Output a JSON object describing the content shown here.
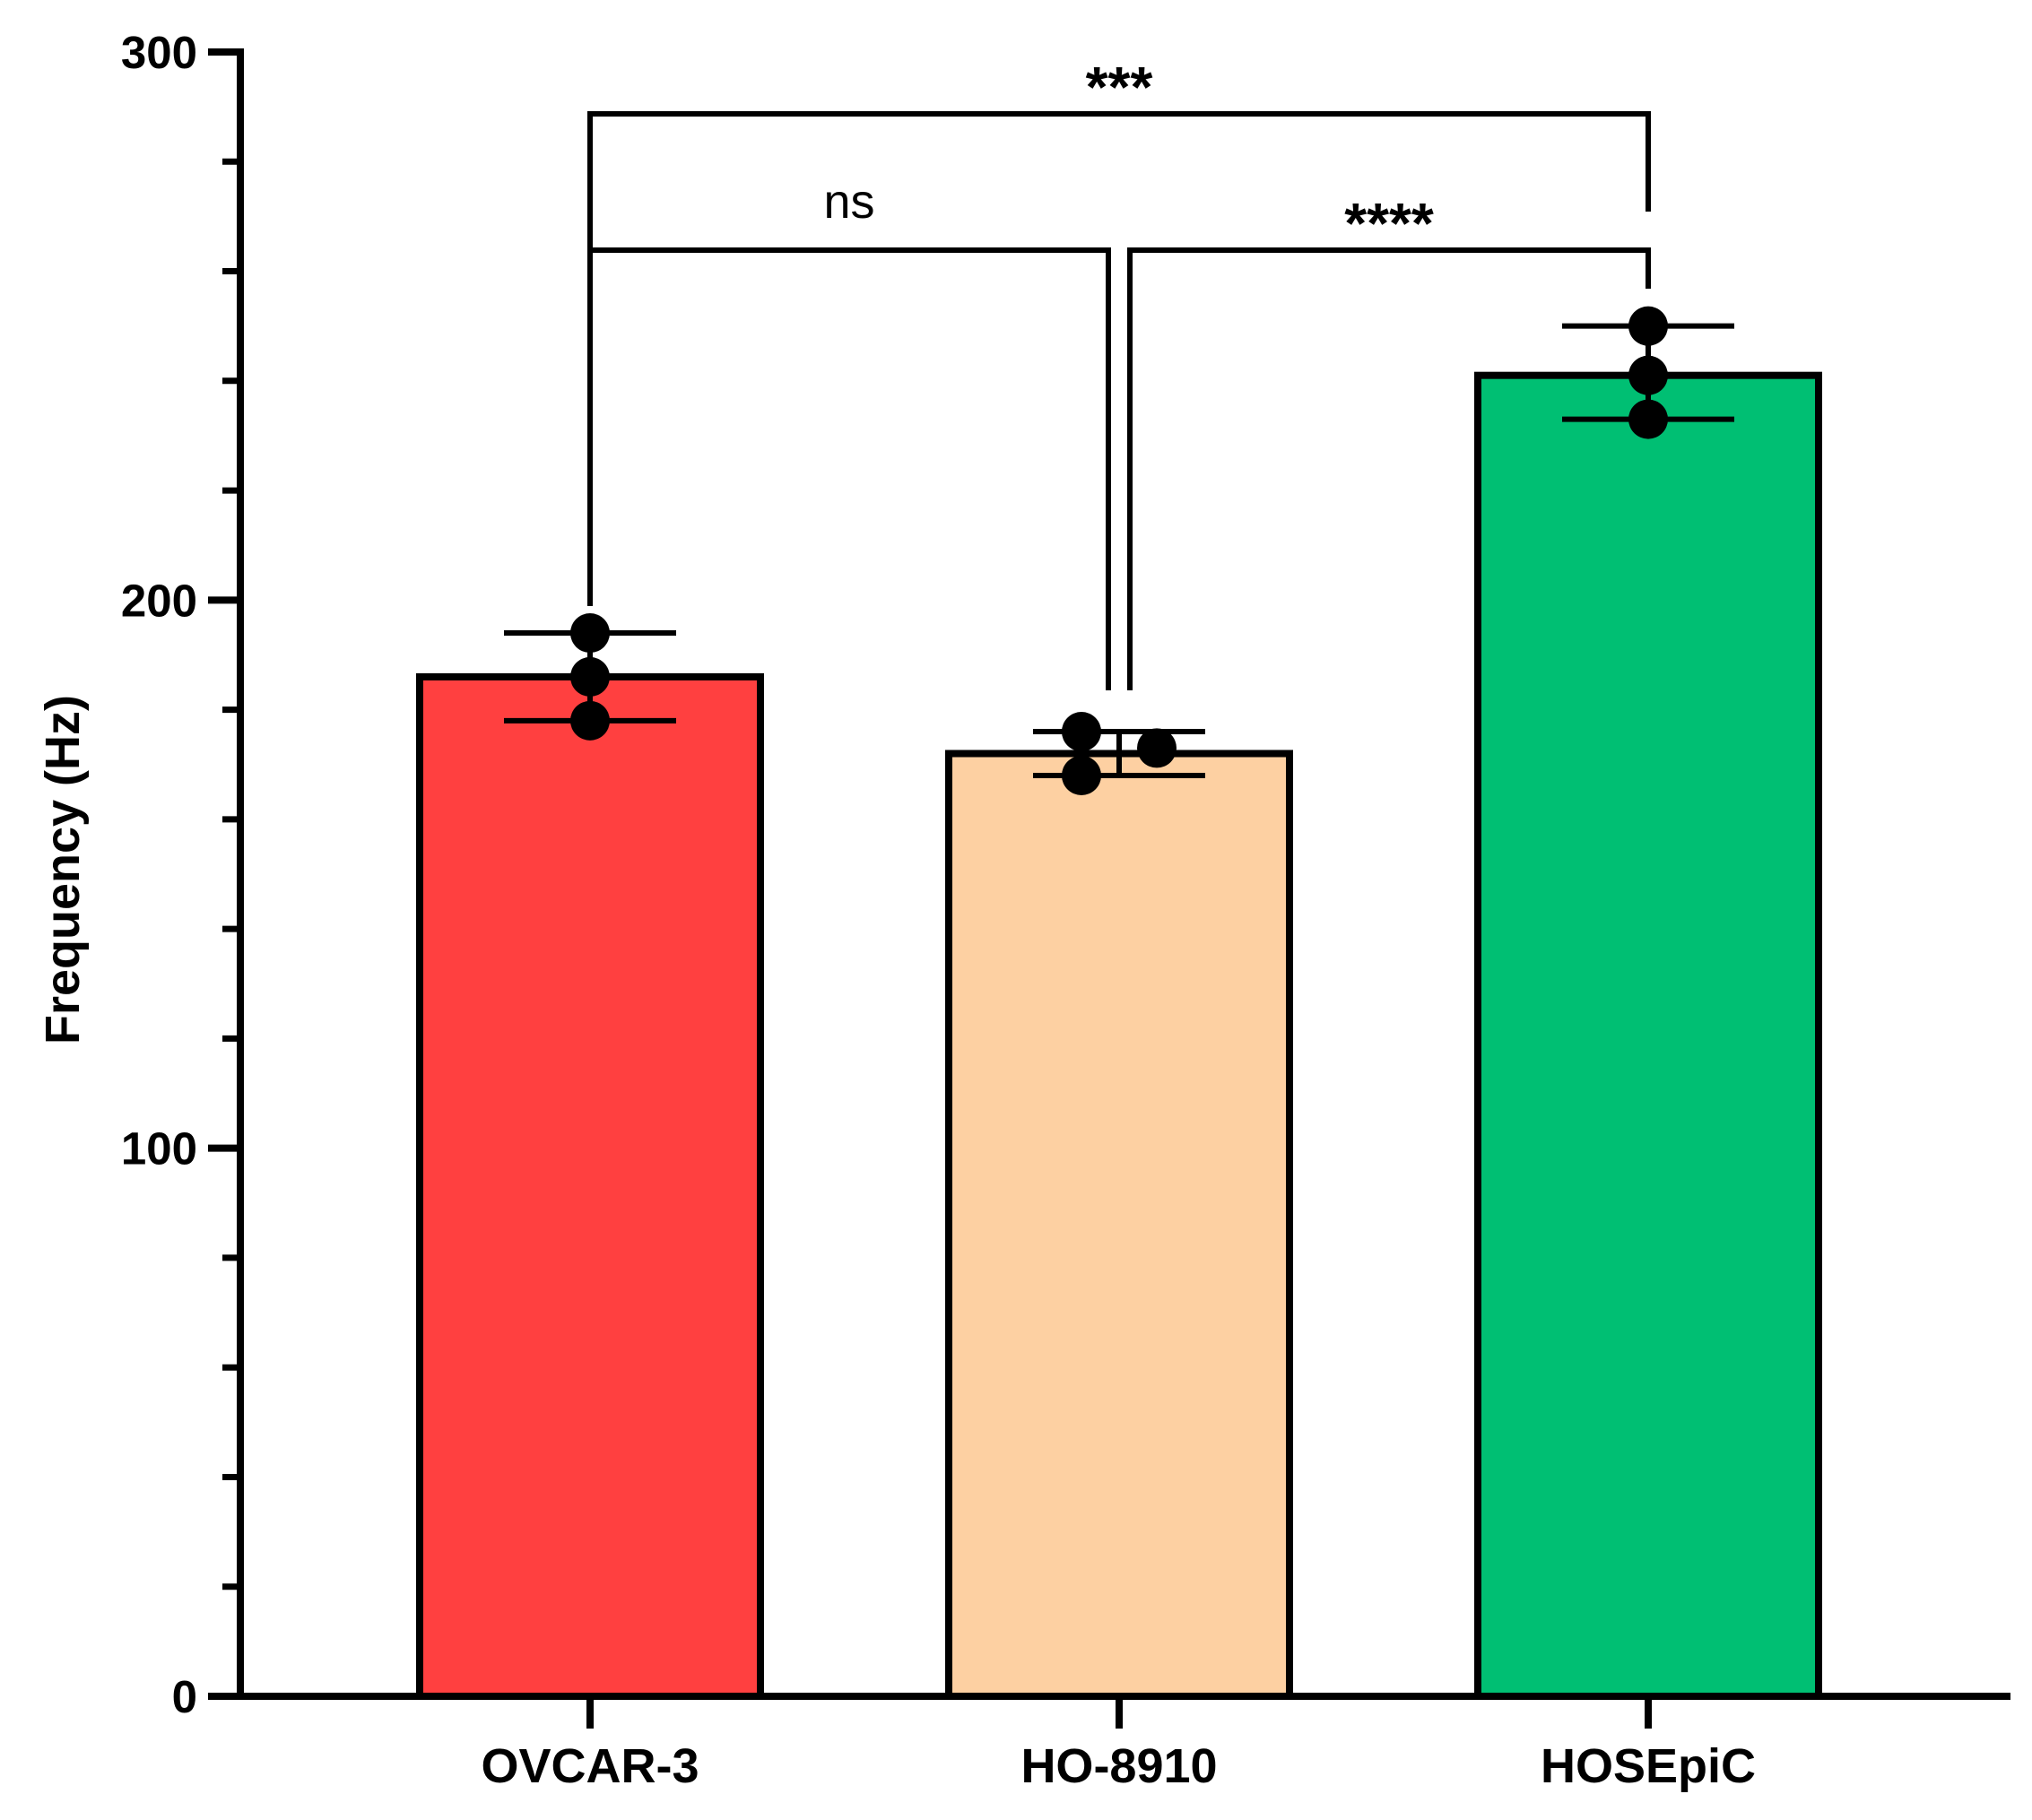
{
  "chart_data": {
    "type": "bar",
    "title": "",
    "xlabel": "",
    "ylabel": "Frequency (Hz)",
    "ylim": [
      0,
      300
    ],
    "y_major_ticks": [
      0,
      100,
      200,
      300
    ],
    "y_minor_step": 20,
    "grid": false,
    "legend": "none",
    "categories": [
      "OVCAR-3",
      "HO-8910",
      "HOSEpiC"
    ],
    "values": [
      186,
      172,
      241
    ],
    "error_bars": [
      {
        "lower": 178,
        "upper": 194
      },
      {
        "lower": 168,
        "upper": 176
      },
      {
        "lower": 233,
        "upper": 250
      }
    ],
    "points": [
      [
        194,
        186,
        178
      ],
      [
        176,
        168,
        173
      ],
      [
        250,
        241,
        233
      ]
    ],
    "colors": [
      "#FF4040",
      "#FDD0A2",
      "#00BF73"
    ],
    "significance": [
      {
        "from": 0,
        "to": 2,
        "label": "***",
        "level": 1
      },
      {
        "from": 0,
        "to": 1,
        "label": "ns",
        "level": 2
      },
      {
        "from": 1,
        "to": 2,
        "label": "****",
        "level": 2
      }
    ]
  }
}
